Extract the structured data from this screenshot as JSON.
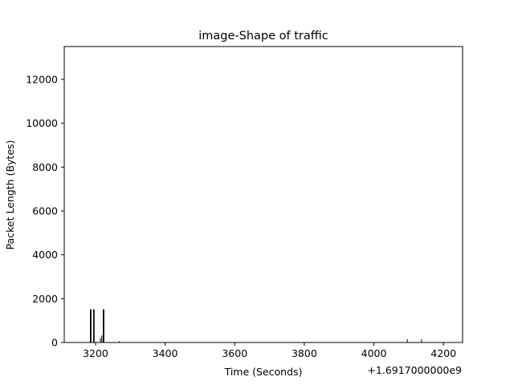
{
  "chart_data": {
    "type": "bar",
    "title": "image-Shape of traffic",
    "xlabel": "Time (Seconds)",
    "ylabel": "Packet Length (Bytes)",
    "x_offset_label": "+1.6917000000e9",
    "xlim": [
      3110,
      4255
    ],
    "ylim": [
      0,
      13500
    ],
    "xticks": [
      3200,
      3400,
      3600,
      3800,
      4000,
      4200
    ],
    "yticks": [
      0,
      2000,
      4000,
      6000,
      8000,
      10000,
      12000
    ],
    "x_tick_labels": [
      "3200",
      "3400",
      "3600",
      "3800",
      "4000",
      "4200"
    ],
    "y_tick_labels": [
      "0",
      "2000",
      "4000",
      "6000",
      "8000",
      "10000",
      "12000"
    ],
    "grid": false,
    "bar_color": "#000000",
    "x": [
      3185,
      3187,
      3194,
      3196,
      3214,
      3218,
      3222,
      3224,
      3268,
      4096,
      4137
    ],
    "values": [
      1514,
      1514,
      1514,
      1514,
      200,
      320,
      1514,
      1514,
      60,
      150,
      150
    ]
  }
}
